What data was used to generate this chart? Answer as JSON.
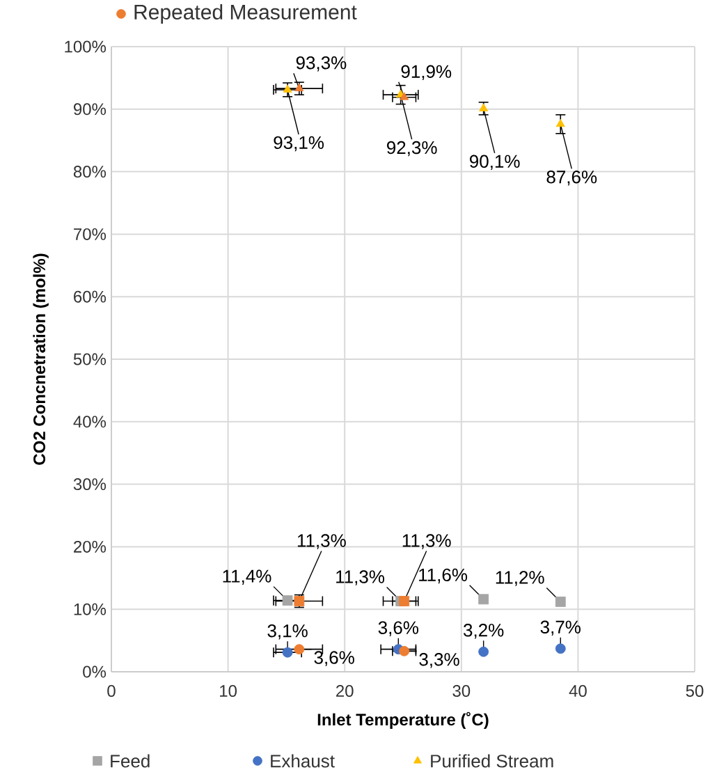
{
  "chart_data": {
    "type": "scatter",
    "xlabel": "Inlet Temperature (˚C)",
    "ylabel": "CO2 Concnetration (mol%)",
    "xlim": [
      0,
      50
    ],
    "xticks": [
      0,
      10,
      20,
      30,
      40,
      50
    ],
    "ylim": [
      0,
      100
    ],
    "yticks": [
      {
        "value": 0,
        "label": "0%"
      },
      {
        "value": 10,
        "label": "10%"
      },
      {
        "value": 20,
        "label": "20%"
      },
      {
        "value": 30,
        "label": "30%"
      },
      {
        "value": 40,
        "label": "40%"
      },
      {
        "value": 50,
        "label": "50%"
      },
      {
        "value": 60,
        "label": "60%"
      },
      {
        "value": 70,
        "label": "70%"
      },
      {
        "value": 80,
        "label": "80%"
      },
      {
        "value": 90,
        "label": "90%"
      },
      {
        "value": 100,
        "label": "100%"
      }
    ],
    "grid": true,
    "legend": "bottom",
    "series": [
      {
        "name": "Feed",
        "color": "#a5a5a5",
        "marker": "square",
        "x": [
          15.1,
          24.8,
          31.9,
          38.5
        ],
        "values": [
          11.4,
          11.3,
          11.6,
          11.2
        ],
        "value_labels": [
          "11,4%",
          "11,3%",
          "11,6%",
          "11,2%"
        ],
        "xerrors": [
          1.2,
          1.5,
          null,
          null
        ],
        "errors": [
          null,
          null,
          null,
          null
        ]
      },
      {
        "name": "Exhaust",
        "color": "#4472c4",
        "marker": "circle",
        "x": [
          15.1,
          24.6,
          31.9,
          38.5
        ],
        "values": [
          3.1,
          3.6,
          3.2,
          3.7
        ],
        "value_labels": [
          "3,1%",
          "3,6%",
          "3,2%",
          "3,7%"
        ],
        "xerrors": [
          1.2,
          1.5,
          null,
          null
        ],
        "errors": [
          null,
          null,
          null,
          null
        ]
      },
      {
        "name": "Purified Stream",
        "color": "#ffc000",
        "marker": "triangle",
        "x": [
          15.1,
          24.8,
          31.9,
          38.5
        ],
        "values": [
          93.1,
          92.3,
          90.1,
          87.6
        ],
        "value_labels": [
          "93,1%",
          "92,3%",
          "90,1%",
          "87,6%"
        ],
        "xerrors": [
          1.2,
          1.5,
          null,
          null
        ],
        "errors": [
          1.1,
          1.5,
          1.0,
          1.5
        ]
      },
      {
        "name": "Repeated Measurement",
        "color": "#ed7d31",
        "marker": "circle",
        "x": [
          16.1,
          25.1
        ],
        "values": [
          3.6,
          3.3
        ],
        "value_labels": [
          "3,6%",
          "3,3%"
        ],
        "xerrors": [
          2.0,
          1.0
        ],
        "errors": [
          null,
          null
        ]
      },
      {
        "color": "#ed7d31",
        "marker": "square",
        "x": [
          16.1,
          25.1
        ],
        "values": [
          11.3,
          11.3
        ],
        "value_labels": [
          "11,3%",
          "11,3%"
        ],
        "xerrors": [
          2.0,
          1.0
        ],
        "errors": [
          1.0,
          null
        ]
      },
      {
        "color": "#ed7d31",
        "marker": "triangle",
        "x": [
          16.1,
          25.1
        ],
        "values": [
          93.3,
          91.9
        ],
        "value_labels": [
          "93,3%",
          "91,9%"
        ],
        "xerrors": [
          2.0,
          1.0
        ],
        "errors": [
          1.0,
          null
        ]
      }
    ]
  }
}
